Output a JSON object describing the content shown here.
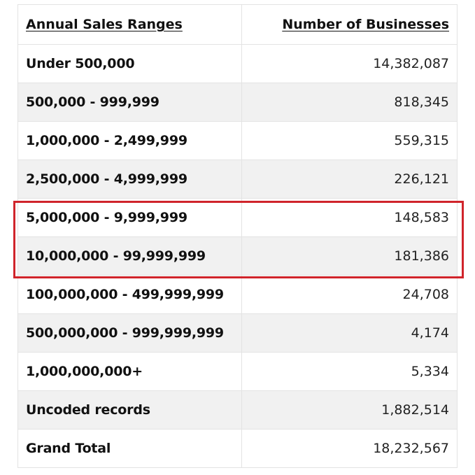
{
  "table": {
    "headers": {
      "range": "Annual Sales Ranges",
      "count": "Number of Businesses"
    },
    "rows": [
      {
        "range": "Under 500,000",
        "count": "14,382,087"
      },
      {
        "range": "500,000 - 999,999",
        "count": "818,345"
      },
      {
        "range": "1,000,000 - 2,499,999",
        "count": "559,315"
      },
      {
        "range": "2,500,000 - 4,999,999",
        "count": "226,121"
      },
      {
        "range": "5,000,000 - 9,999,999",
        "count": "148,583"
      },
      {
        "range": "10,000,000 - 99,999,999",
        "count": "181,386"
      },
      {
        "range": "100,000,000 - 499,999,999",
        "count": "24,708"
      },
      {
        "range": "500,000,000 - 999,999,999",
        "count": "4,174"
      },
      {
        "range": "1,000,000,000+",
        "count": "5,334"
      },
      {
        "range": "Uncoded records",
        "count": "1,882,514"
      },
      {
        "range": "Grand Total",
        "count": "18,232,567"
      }
    ]
  },
  "highlight": {
    "color": "#d0242b"
  },
  "colors": {
    "row_alt": "#f1f1f1",
    "border": "#e3e3e3"
  }
}
